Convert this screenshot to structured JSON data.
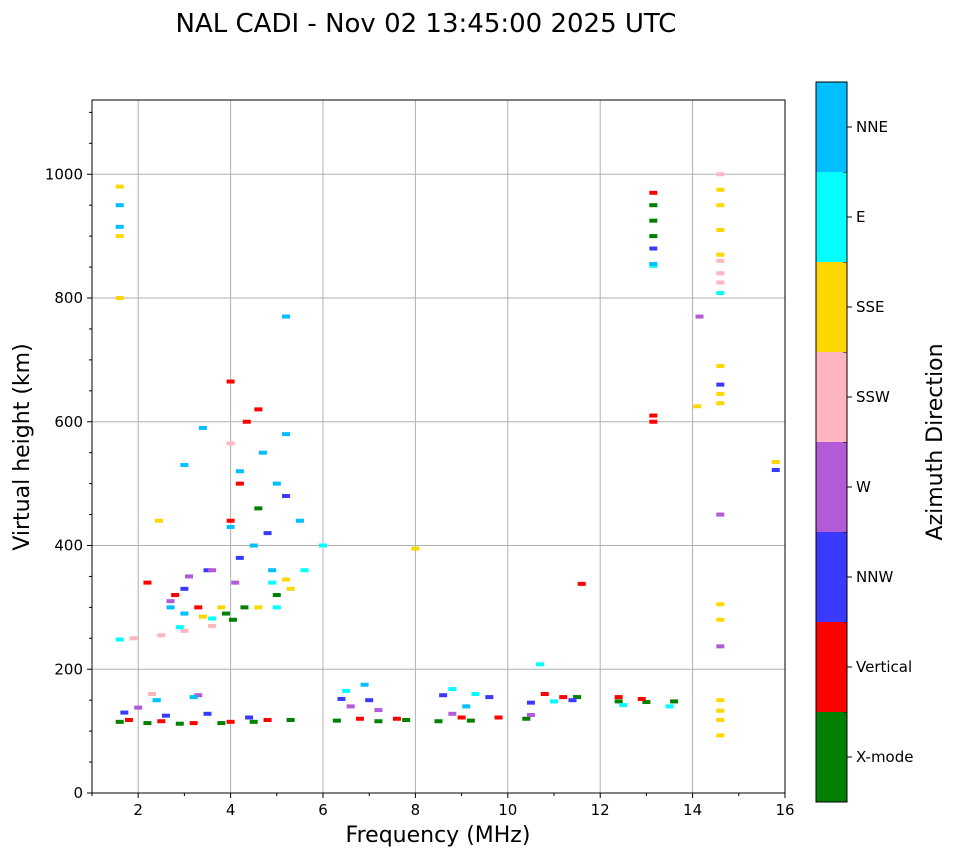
{
  "chart_data": {
    "type": "scatter",
    "title": "NAL CADI - Nov 02 13:45:00 2025 UTC",
    "xlabel": "Frequency (MHz)",
    "ylabel": "Virtual height (km)",
    "xlim": [
      1,
      16
    ],
    "ylim": [
      0,
      1120
    ],
    "xticks": [
      2,
      4,
      6,
      8,
      10,
      12,
      14,
      16
    ],
    "yticks": [
      0,
      200,
      400,
      600,
      800,
      1000
    ],
    "grid": true,
    "colorbar": {
      "label": "Azimuth Direction",
      "categories": [
        {
          "name": "X-mode",
          "color": "#008000"
        },
        {
          "name": "Vertical",
          "color": "#ff0000"
        },
        {
          "name": "NNW",
          "color": "#3a3aff"
        },
        {
          "name": "W",
          "color": "#b35ad6"
        },
        {
          "name": "SSW",
          "color": "#ffb6c1"
        },
        {
          "name": "SSE",
          "color": "#ffd700"
        },
        {
          "name": "E",
          "color": "#00ffff"
        },
        {
          "name": "NNE",
          "color": "#00bfff"
        }
      ]
    },
    "series": [
      {
        "name": "X-mode",
        "points": [
          [
            1.6,
            115
          ],
          [
            2.2,
            113
          ],
          [
            2.9,
            112
          ],
          [
            3.8,
            113
          ],
          [
            4.5,
            115
          ],
          [
            5.3,
            118
          ],
          [
            6.3,
            117
          ],
          [
            7.2,
            116
          ],
          [
            7.8,
            118
          ],
          [
            8.5,
            116
          ],
          [
            9.2,
            117
          ],
          [
            10.4,
            120
          ],
          [
            11.5,
            155
          ],
          [
            12.4,
            148
          ],
          [
            13.0,
            147
          ],
          [
            13.6,
            148
          ],
          [
            13.15,
            925
          ],
          [
            13.15,
            950
          ],
          [
            13.15,
            900
          ],
          [
            4.05,
            280
          ],
          [
            3.9,
            290
          ],
          [
            4.3,
            300
          ],
          [
            5.0,
            320
          ],
          [
            4.6,
            460
          ]
        ]
      },
      {
        "name": "Vertical",
        "points": [
          [
            1.8,
            118
          ],
          [
            2.5,
            116
          ],
          [
            3.2,
            113
          ],
          [
            4.0,
            115
          ],
          [
            4.8,
            118
          ],
          [
            6.8,
            120
          ],
          [
            7.6,
            120
          ],
          [
            9.0,
            122
          ],
          [
            9.8,
            122
          ],
          [
            10.8,
            160
          ],
          [
            11.2,
            155
          ],
          [
            12.4,
            155
          ],
          [
            12.9,
            152
          ],
          [
            13.15,
            610
          ],
          [
            13.15,
            600
          ],
          [
            13.15,
            970
          ],
          [
            2.2,
            340
          ],
          [
            2.8,
            320
          ],
          [
            3.3,
            300
          ],
          [
            4.0,
            440
          ],
          [
            4.2,
            500
          ],
          [
            4.35,
            600
          ],
          [
            4.0,
            665
          ],
          [
            11.6,
            338
          ],
          [
            4.6,
            620
          ]
        ]
      },
      {
        "name": "NNW",
        "points": [
          [
            1.7,
            130
          ],
          [
            2.6,
            125
          ],
          [
            3.5,
            128
          ],
          [
            4.4,
            122
          ],
          [
            6.4,
            152
          ],
          [
            7.0,
            150
          ],
          [
            8.6,
            158
          ],
          [
            9.6,
            155
          ],
          [
            10.5,
            146
          ],
          [
            11.4,
            150
          ],
          [
            13.15,
            880
          ],
          [
            15.8,
            522
          ],
          [
            14.6,
            660
          ],
          [
            3.0,
            330
          ],
          [
            3.5,
            360
          ],
          [
            4.2,
            380
          ],
          [
            4.8,
            420
          ],
          [
            5.2,
            480
          ]
        ]
      },
      {
        "name": "W",
        "points": [
          [
            2.0,
            138
          ],
          [
            3.3,
            158
          ],
          [
            6.6,
            140
          ],
          [
            7.2,
            134
          ],
          [
            8.8,
            128
          ],
          [
            10.5,
            126
          ],
          [
            14.15,
            770
          ],
          [
            14.6,
            450
          ],
          [
            14.6,
            237
          ],
          [
            2.7,
            310
          ],
          [
            3.1,
            350
          ],
          [
            3.6,
            360
          ],
          [
            4.1,
            340
          ]
        ]
      },
      {
        "name": "SSW",
        "points": [
          [
            1.9,
            250
          ],
          [
            2.5,
            255
          ],
          [
            3.0,
            262
          ],
          [
            3.6,
            270
          ],
          [
            14.6,
            840
          ],
          [
            14.6,
            860
          ],
          [
            14.6,
            825
          ],
          [
            14.6,
            1000
          ],
          [
            4.0,
            565
          ],
          [
            2.3,
            160
          ]
        ]
      },
      {
        "name": "SSE",
        "points": [
          [
            1.6,
            980
          ],
          [
            1.6,
            800
          ],
          [
            1.6,
            900
          ],
          [
            3.4,
            285
          ],
          [
            4.6,
            300
          ],
          [
            5.3,
            330
          ],
          [
            14.1,
            625
          ],
          [
            14.6,
            975
          ],
          [
            14.6,
            950
          ],
          [
            14.6,
            910
          ],
          [
            14.6,
            870
          ],
          [
            14.6,
            690
          ],
          [
            14.6,
            645
          ],
          [
            14.6,
            630
          ],
          [
            14.6,
            305
          ],
          [
            14.6,
            280
          ],
          [
            14.6,
            150
          ],
          [
            14.6,
            133
          ],
          [
            14.6,
            118
          ],
          [
            14.6,
            93
          ],
          [
            15.8,
            535
          ],
          [
            8.0,
            395
          ],
          [
            2.45,
            440
          ],
          [
            5.2,
            345
          ],
          [
            3.8,
            300
          ]
        ]
      },
      {
        "name": "E",
        "points": [
          [
            1.6,
            248
          ],
          [
            2.9,
            268
          ],
          [
            3.6,
            282
          ],
          [
            5.0,
            300
          ],
          [
            5.6,
            360
          ],
          [
            6.0,
            400
          ],
          [
            6.5,
            165
          ],
          [
            8.8,
            168
          ],
          [
            9.3,
            160
          ],
          [
            10.7,
            208
          ],
          [
            11.0,
            148
          ],
          [
            12.5,
            142
          ],
          [
            13.5,
            140
          ],
          [
            13.15,
            852
          ],
          [
            14.6,
            808
          ],
          [
            2.4,
            150
          ],
          [
            4.9,
            340
          ]
        ]
      },
      {
        "name": "NNE",
        "points": [
          [
            1.6,
            950
          ],
          [
            1.6,
            915
          ],
          [
            2.4,
            150
          ],
          [
            3.2,
            155
          ],
          [
            3.4,
            590
          ],
          [
            4.5,
            400
          ],
          [
            4.9,
            360
          ],
          [
            5.0,
            500
          ],
          [
            5.2,
            580
          ],
          [
            5.5,
            440
          ],
          [
            4.7,
            550
          ],
          [
            4.2,
            520
          ],
          [
            4.0,
            430
          ],
          [
            3.0,
            290
          ],
          [
            9.1,
            140
          ],
          [
            6.9,
            175
          ],
          [
            13.15,
            855
          ],
          [
            5.2,
            770
          ],
          [
            3.0,
            530
          ],
          [
            2.7,
            300
          ]
        ]
      }
    ]
  }
}
